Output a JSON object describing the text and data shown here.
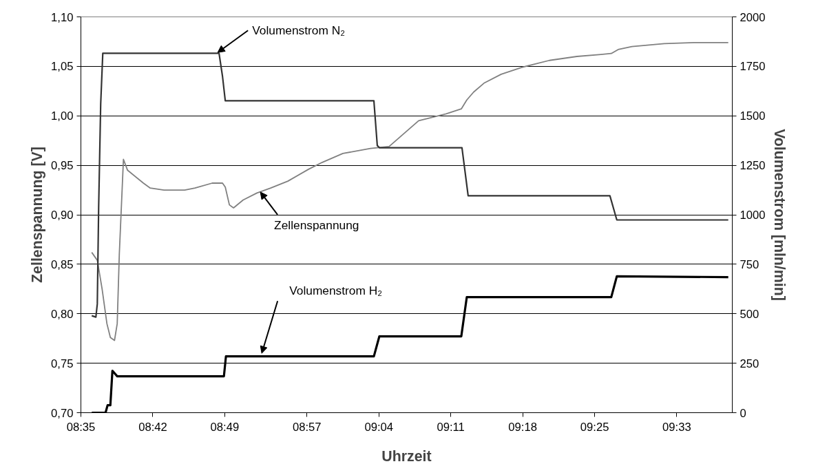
{
  "chart_data": {
    "type": "line",
    "xlabel": "Uhrzeit",
    "ylabel": "Zellenspannung [V]",
    "y2label": "Volumenstrom [mln/min]",
    "xlim": [
      8.5833,
      9.64
    ],
    "xticks": [
      {
        "value": 8.5833,
        "label": "08:35"
      },
      {
        "value": 8.7,
        "label": "08:42"
      },
      {
        "value": 8.8167,
        "label": "08:49"
      },
      {
        "value": 8.95,
        "label": "08:57"
      },
      {
        "value": 9.0667,
        "label": "09:04"
      },
      {
        "value": 9.1833,
        "label": "09:11"
      },
      {
        "value": 9.3,
        "label": "09:18"
      },
      {
        "value": 9.4167,
        "label": "09:25"
      },
      {
        "value": 9.55,
        "label": "09:33"
      }
    ],
    "ylim": [
      0.7,
      1.1
    ],
    "yticks": [
      {
        "value": 0.7,
        "label": "0,70"
      },
      {
        "value": 0.75,
        "label": "0,75"
      },
      {
        "value": 0.8,
        "label": "0,80"
      },
      {
        "value": 0.85,
        "label": "0,85"
      },
      {
        "value": 0.9,
        "label": "0,90"
      },
      {
        "value": 0.95,
        "label": "0,95"
      },
      {
        "value": 1.0,
        "label": "1,00"
      },
      {
        "value": 1.05,
        "label": "1,05"
      },
      {
        "value": 1.1,
        "label": "1,10"
      }
    ],
    "y2lim": [
      0,
      2000
    ],
    "y2ticks": [
      0,
      250,
      500,
      750,
      1000,
      1250,
      1500,
      1750,
      2000
    ],
    "grid": "y",
    "series": [
      {
        "color": "#808080",
        "x": [
          8.6009,
          8.6099,
          8.6177,
          8.6255,
          8.6311,
          8.6378,
          8.6422,
          8.6456,
          8.6523,
          8.659,
          8.6847,
          8.6958,
          8.7181,
          8.7516,
          8.7684,
          8.7963,
          8.813,
          8.8175,
          8.8242,
          8.8309,
          8.8465,
          8.8688,
          8.8912,
          8.9191,
          8.9526,
          8.9749,
          9.0084,
          9.053,
          9.0832,
          9.1312,
          9.1758,
          9.2004,
          9.2093,
          9.2204,
          9.2372,
          9.2651,
          9.2986,
          9.3433,
          9.3879,
          9.427,
          9.4437,
          9.4549,
          9.4772,
          9.5297,
          9.5777,
          9.6335
        ],
        "values": [
          0.862,
          0.854,
          0.825,
          0.79,
          0.776,
          0.773,
          0.79,
          0.86,
          0.956,
          0.945,
          0.932,
          0.927,
          0.925,
          0.925,
          0.927,
          0.932,
          0.932,
          0.928,
          0.91,
          0.907,
          0.915,
          0.922,
          0.927,
          0.934,
          0.946,
          0.953,
          0.962,
          0.967,
          0.969,
          0.995,
          1.002,
          1.007,
          1.016,
          1.024,
          1.033,
          1.042,
          1.049,
          1.056,
          1.06,
          1.062,
          1.063,
          1.067,
          1.07,
          1.073,
          1.074,
          1.074
        ]
      },
      {
        "color": "#333333",
        "axis": "y2",
        "x": [
          8.6009,
          8.6076,
          8.6099,
          8.6121,
          8.6154,
          8.6188,
          8.8074,
          8.813,
          8.8175,
          9.0586,
          9.0641,
          9.0675,
          9.2015,
          9.2115,
          9.4415,
          9.4527,
          9.6335
        ],
        "values": [
          490,
          483,
          550,
          1040,
          1560,
          1816,
          1816,
          1700,
          1576,
          1576,
          1350,
          1339,
          1339,
          1096,
          1096,
          974,
          974
        ]
      },
      {
        "color": "#000000",
        "axis": "y2",
        "x": [
          8.6009,
          8.6233,
          8.6266,
          8.6311,
          8.6344,
          8.6422,
          8.8153,
          8.8186,
          9.0586,
          9.0675,
          9.2004,
          9.2093,
          9.4437,
          9.4527,
          9.6335
        ],
        "values": [
          0,
          0,
          38,
          38,
          212,
          184,
          184,
          285,
          285,
          386,
          386,
          584,
          584,
          689,
          685
        ]
      }
    ],
    "annotations": [
      {
        "text": "Volumenstrom N₂",
        "x": 8.8052,
        "y": 1.064
      },
      {
        "text": "Zellenspannung",
        "x": 8.8744,
        "y": 0.923
      },
      {
        "text": "Volumenstrom H₂",
        "x": 8.8767,
        "y": 0.76
      }
    ]
  }
}
